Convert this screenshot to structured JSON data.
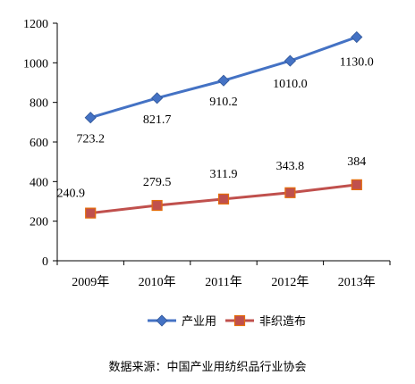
{
  "chart_data": {
    "type": "line",
    "categories": [
      "2009年",
      "2010年",
      "2011年",
      "2012年",
      "2013年"
    ],
    "ylim": [
      0,
      1200
    ],
    "yticks": [
      0,
      200,
      400,
      600,
      800,
      1000,
      1200
    ],
    "grid": false,
    "legend_position": "bottom",
    "series": [
      {
        "name": "产业用",
        "values": [
          723.2,
          821.7,
          910.2,
          1010.0,
          1130.0
        ],
        "labels": [
          "723.2",
          "821.7",
          "910.2",
          "1010.0",
          "1130.0"
        ],
        "color": "#4472C4",
        "marker": "diamond"
      },
      {
        "name": "非织造布",
        "values": [
          240.9,
          279.5,
          311.9,
          343.8,
          384
        ],
        "labels": [
          "240.9",
          "279.5",
          "311.9",
          "343.8",
          "384"
        ],
        "color": "#C0504D",
        "marker": "square"
      }
    ]
  },
  "source_text": "数据来源：中国产业用纺织品行业协会"
}
